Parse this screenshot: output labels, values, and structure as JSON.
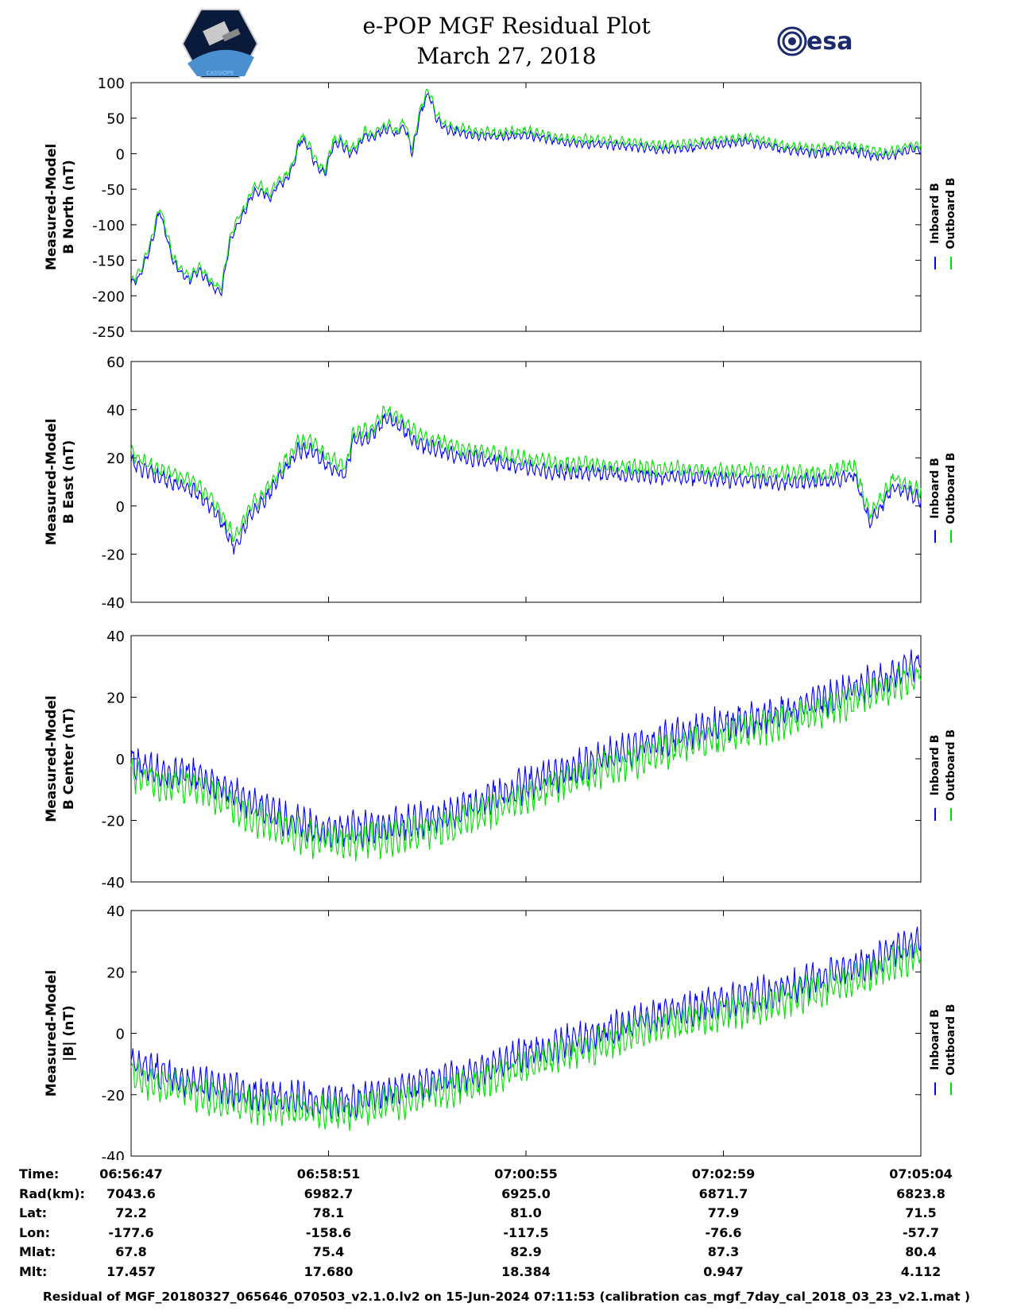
{
  "header": {
    "title_line1": "e-POP MGF Residual Plot",
    "title_line2": "March 27, 2018",
    "logo_left_text": "CASSIOPE",
    "logo_right_text": "esa"
  },
  "colors": {
    "inboard": "#0000ff",
    "outboard": "#00e000",
    "axis": "#000000"
  },
  "legend": {
    "inboard_label": "Inboard B",
    "outboard_label": "Outboard B"
  },
  "chart_data": [
    {
      "type": "line",
      "name": "north",
      "ylabel_line1": "Measured-Model",
      "ylabel_line2": "B North (nT)",
      "ylim": [
        -250,
        100
      ],
      "yticks": [
        100,
        50,
        0,
        -50,
        -100,
        -150,
        -200,
        -250
      ],
      "xlim": [
        0,
        497
      ],
      "trend_x": [
        0,
        5,
        12,
        18,
        22,
        27,
        32,
        37,
        42,
        47,
        52,
        57,
        62,
        67,
        72,
        77,
        82,
        87,
        92,
        97,
        102,
        107,
        112,
        117,
        122,
        127,
        132,
        137,
        142,
        147,
        152,
        157,
        162,
        167,
        172,
        177,
        182,
        187,
        192,
        197,
        205,
        215,
        230,
        250,
        270,
        290,
        310,
        330,
        350,
        370,
        390,
        410,
        430,
        450,
        470,
        480,
        490,
        497
      ],
      "trend_y": [
        -180,
        -170,
        -130,
        -75,
        -110,
        -150,
        -165,
        -175,
        -160,
        -172,
        -185,
        -190,
        -120,
        -95,
        -75,
        -50,
        -48,
        -60,
        -40,
        -35,
        -15,
        25,
        10,
        -15,
        -25,
        15,
        20,
        5,
        10,
        30,
        25,
        35,
        40,
        30,
        45,
        5,
        60,
        90,
        55,
        40,
        35,
        30,
        28,
        30,
        20,
        18,
        15,
        10,
        12,
        18,
        20,
        10,
        5,
        10,
        0,
        2,
        10,
        10
      ],
      "noise_amplitude": 6,
      "series": [
        {
          "name": "Inboard B",
          "offset": -4
        },
        {
          "name": "Outboard B",
          "offset": 2
        }
      ]
    },
    {
      "type": "line",
      "name": "east",
      "ylabel_line1": "Measured-Model",
      "ylabel_line2": "B East (nT)",
      "ylim": [
        -40,
        60
      ],
      "yticks": [
        60,
        40,
        20,
        0,
        -20,
        -40
      ],
      "xlim": [
        0,
        497
      ],
      "trend_x": [
        0,
        10,
        25,
        40,
        50,
        57,
        65,
        75,
        85,
        95,
        105,
        115,
        125,
        135,
        140,
        150,
        160,
        170,
        180,
        195,
        210,
        230,
        250,
        270,
        290,
        310,
        330,
        350,
        370,
        390,
        410,
        425,
        440,
        448,
        455,
        465,
        480,
        497
      ],
      "trend_y": [
        20,
        16,
        12,
        8,
        2,
        -5,
        -15,
        -2,
        5,
        15,
        25,
        25,
        18,
        15,
        30,
        30,
        38,
        35,
        28,
        25,
        22,
        20,
        18,
        16,
        16,
        15,
        14,
        14,
        13,
        13,
        12,
        12,
        12,
        14,
        15,
        -5,
        10,
        5
      ],
      "noise_amplitude": 3,
      "series": [
        {
          "name": "Inboard B",
          "offset": -2
        },
        {
          "name": "Outboard B",
          "offset": 1.5
        }
      ]
    },
    {
      "type": "line",
      "name": "center",
      "ylabel_line1": "Measured-Model",
      "ylabel_line2": "B Center (nT)",
      "ylim": [
        -40,
        40
      ],
      "yticks": [
        40,
        20,
        0,
        -20,
        -40
      ],
      "xlim": [
        0,
        497
      ],
      "trend_x": [
        0,
        20,
        40,
        60,
        80,
        100,
        120,
        140,
        160,
        180,
        200,
        220,
        240,
        260,
        280,
        300,
        320,
        340,
        360,
        380,
        400,
        420,
        440,
        460,
        480,
        497
      ],
      "trend_y": [
        -3,
        -7,
        -7,
        -12,
        -18,
        -22,
        -25,
        -25,
        -24,
        -22,
        -20,
        -16,
        -12,
        -8,
        -5,
        -1,
        2,
        5,
        8,
        10,
        12,
        15,
        18,
        22,
        25,
        30
      ],
      "noise_amplitude": 5,
      "series": [
        {
          "name": "Inboard B",
          "offset": 2
        },
        {
          "name": "Outboard B",
          "offset": -2
        }
      ]
    },
    {
      "type": "line",
      "name": "total",
      "ylabel_line1": "Measured-Model",
      "ylabel_line2": "|B| (nT)",
      "ylim": [
        -40,
        40
      ],
      "yticks": [
        40,
        20,
        0,
        -20,
        -40
      ],
      "xlim": [
        0,
        497
      ],
      "trend_x": [
        0,
        20,
        40,
        60,
        80,
        100,
        120,
        140,
        160,
        180,
        200,
        220,
        240,
        260,
        280,
        300,
        320,
        340,
        360,
        380,
        400,
        420,
        440,
        460,
        480,
        497
      ],
      "trend_y": [
        -12,
        -15,
        -18,
        -20,
        -22,
        -23,
        -24,
        -24,
        -21,
        -19,
        -17,
        -14,
        -10,
        -7,
        -4,
        -1,
        2,
        5,
        7,
        9,
        11,
        14,
        17,
        20,
        25,
        28
      ],
      "noise_amplitude": 5,
      "series": [
        {
          "name": "Inboard B",
          "offset": 2
        },
        {
          "name": "Outboard B",
          "offset": -2
        }
      ]
    }
  ],
  "orbit_table": {
    "rows": [
      {
        "label": "Time:",
        "values": [
          "06:56:47",
          "06:58:51",
          "07:00:55",
          "07:02:59",
          "07:05:04"
        ]
      },
      {
        "label": "Rad(km):",
        "values": [
          "7043.6",
          "6982.7",
          "6925.0",
          "6871.7",
          "6823.8"
        ]
      },
      {
        "label": "Lat:",
        "values": [
          "72.2",
          "78.1",
          "81.0",
          "77.9",
          "71.5"
        ]
      },
      {
        "label": "Lon:",
        "values": [
          "-177.6",
          "-158.6",
          "-117.5",
          "-76.6",
          "-57.7"
        ]
      },
      {
        "label": "Mlat:",
        "values": [
          "67.8",
          "75.4",
          "82.9",
          "87.3",
          "80.4"
        ]
      },
      {
        "label": "Mlt:",
        "values": [
          "17.457",
          "17.680",
          "18.384",
          "0.947",
          "4.112"
        ]
      }
    ]
  },
  "footer": {
    "text": "Residual of MGF_20180327_065646_070503_v2.1.0.lv2 on 15-Jun-2024 07:11:53 (calibration cas_mgf_7day_cal_2018_03_23_v2.1.mat )"
  }
}
